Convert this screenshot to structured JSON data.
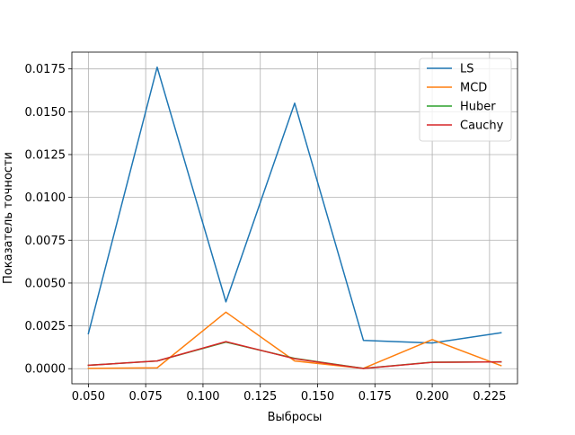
{
  "chart_data": {
    "type": "line",
    "title": "",
    "xlabel": "Выбросы",
    "ylabel": "Показатель точности",
    "x": [
      0.05,
      0.08,
      0.11,
      0.14,
      0.17,
      0.2,
      0.23
    ],
    "xlim": [
      0.0428,
      0.2372
    ],
    "ylim": [
      -0.00088,
      0.01848
    ],
    "xticks": [
      0.05,
      0.075,
      0.1,
      0.125,
      0.15,
      0.175,
      0.2,
      0.225
    ],
    "xtick_labels": [
      "0.050",
      "0.075",
      "0.100",
      "0.125",
      "0.150",
      "0.175",
      "0.200",
      "0.225"
    ],
    "yticks": [
      0,
      0.0025,
      0.005,
      0.0075,
      0.01,
      0.0125,
      0.015,
      0.0175
    ],
    "ytick_labels": [
      "0.0000",
      "0.0025",
      "0.0050",
      "0.0075",
      "0.0100",
      "0.0125",
      "0.0150",
      "0.0175"
    ],
    "grid": true,
    "legend_position": "top-right",
    "series": [
      {
        "name": "LS",
        "color": "#1f77b4",
        "values": [
          0.00205,
          0.0176,
          0.0039,
          0.0155,
          0.00165,
          0.0015,
          0.0021
        ]
      },
      {
        "name": "MCD",
        "color": "#ff7f0e",
        "values": [
          2e-05,
          5e-05,
          0.0033,
          0.00045,
          2e-05,
          0.0017,
          0.00018
        ]
      },
      {
        "name": "Huber",
        "color": "#2ca02c",
        "values": [
          0.0002,
          0.00045,
          0.00155,
          0.0006,
          2e-05,
          0.00038,
          0.0004
        ]
      },
      {
        "name": "Cauchy",
        "color": "#d62728",
        "values": [
          0.0002,
          0.00045,
          0.00158,
          0.00058,
          1e-05,
          0.00037,
          0.0004
        ]
      }
    ]
  }
}
